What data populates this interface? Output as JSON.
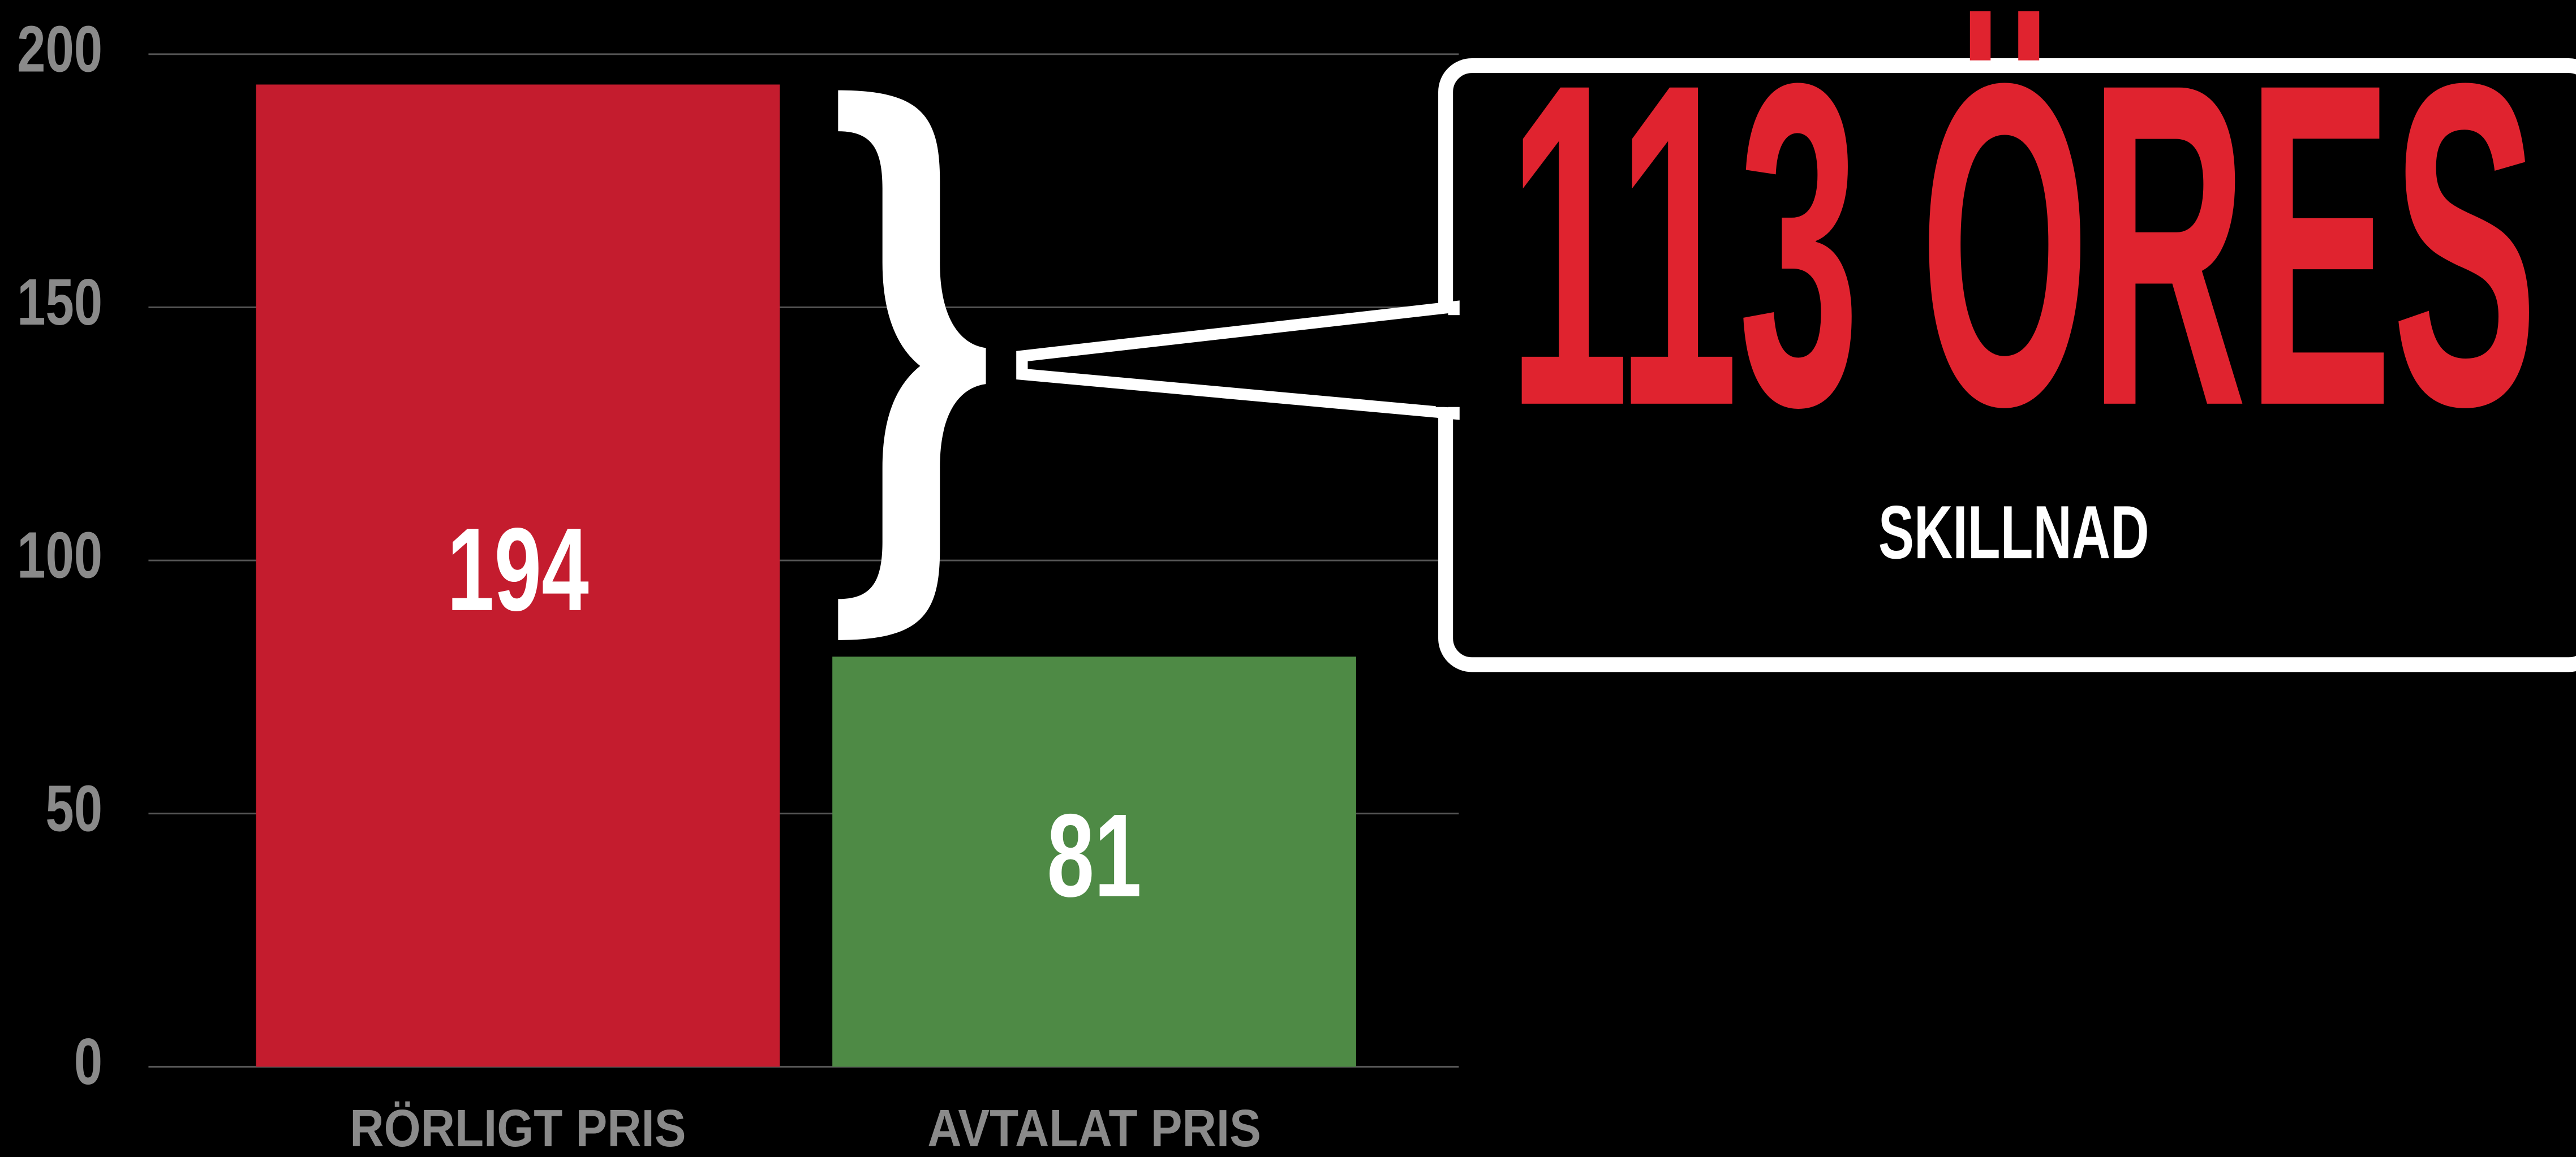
{
  "chart_data": {
    "type": "bar",
    "categories": [
      "RÖRLIGT PRIS",
      "AVTALAT PRIS"
    ],
    "values": [
      194,
      81
    ],
    "colors": [
      "#c41c2e",
      "#4e8a45"
    ],
    "ylim": [
      0,
      200
    ],
    "yticks": [
      0,
      50,
      100,
      150,
      200
    ],
    "grid": true,
    "annotation": "113 ÖRES",
    "annotation_subtitle": "SKILLNAD"
  }
}
